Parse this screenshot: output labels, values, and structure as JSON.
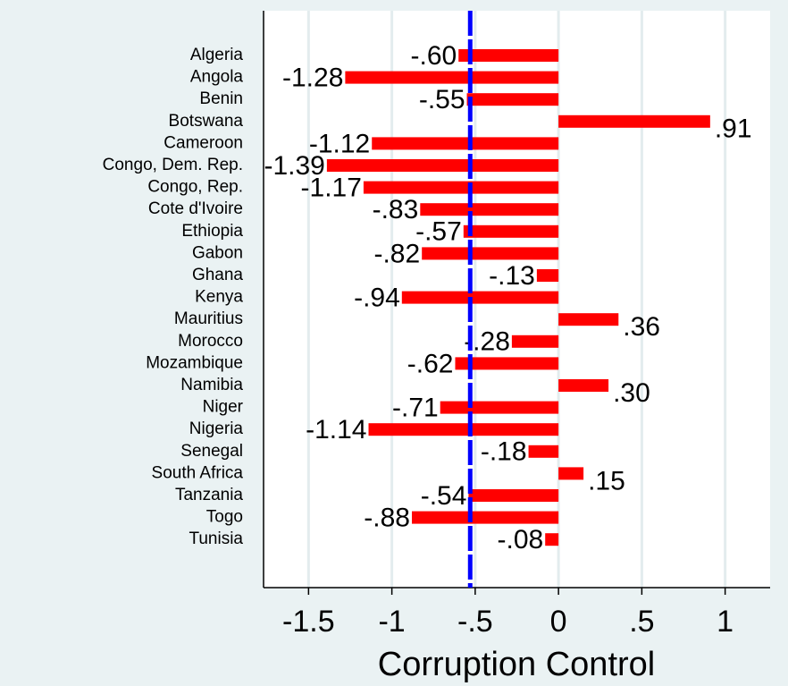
{
  "chart_data": {
    "type": "hbar",
    "x_label": "Corruption Control",
    "categories": [
      "Algeria",
      "Angola",
      "Benin",
      "Botswana",
      "Cameroon",
      "Congo, Dem. Rep.",
      "Congo, Rep.",
      "Cote d'Ivoire",
      "Ethiopia",
      "Gabon",
      "Ghana",
      "Kenya",
      "Mauritius",
      "Morocco",
      "Mozambique",
      "Namibia",
      "Niger",
      "Nigeria",
      "Senegal",
      "South Africa",
      "Tanzania",
      "Togo",
      "Tunisia"
    ],
    "values": [
      -0.6,
      -1.28,
      -0.55,
      0.91,
      -1.12,
      -1.39,
      -1.17,
      -0.83,
      -0.57,
      -0.82,
      -0.13,
      -0.94,
      0.36,
      -0.28,
      -0.62,
      0.3,
      -0.71,
      -1.14,
      -0.18,
      0.15,
      -0.54,
      -0.88,
      -0.08
    ],
    "value_labels": [
      "-.60",
      "-1.28",
      "-.55",
      ".91",
      "-1.12",
      "-1.39",
      "-1.17",
      "-.83",
      "-.57",
      "-.82",
      "-.13",
      "-.94",
      ".36",
      "-.28",
      "-.62",
      ".30",
      "-.71",
      "-1.14",
      "-.18",
      ".15",
      "-.54",
      "-.88",
      "-.08"
    ],
    "color": "#ff0000",
    "mean_line": -0.53,
    "mean_line_color": "#0000ff",
    "xlim": [
      -1.77,
      1.27
    ],
    "xticks": [
      -1.5,
      -1,
      {
        "value": -0.5,
        "label": "-.5"
      },
      0,
      {
        "value": 0.5,
        "label": ".5"
      },
      1
    ],
    "grid": true
  }
}
